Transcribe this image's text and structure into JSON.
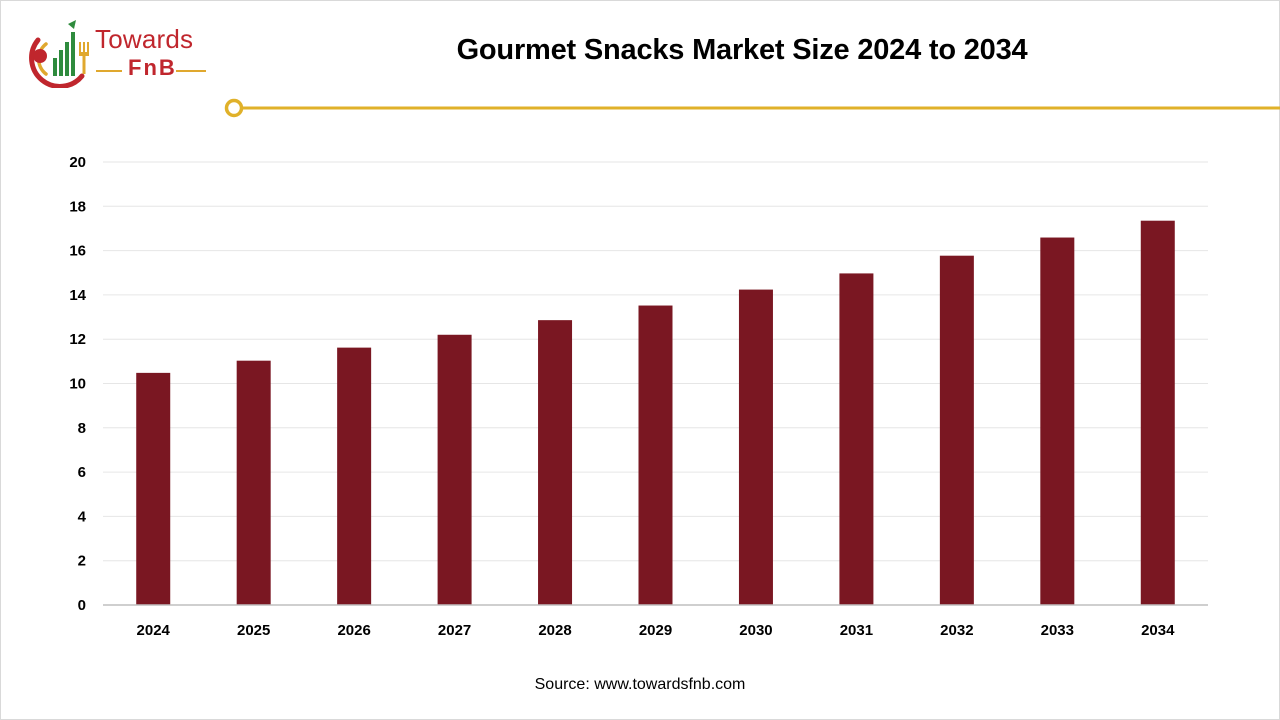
{
  "brand": {
    "name_top": "Towards",
    "name_bottom": "FnB",
    "colors": {
      "red": "#c0262d",
      "green": "#2e8b3d",
      "gold": "#e0a82e"
    }
  },
  "accent_color": "#e0b12a",
  "bar_color": "#7a1722",
  "source_text": "Source: www.towardsfnb.com",
  "chart_data": {
    "type": "bar",
    "title": "Gourmet Snacks Market Size 2024 to 2034",
    "xlabel": "",
    "ylabel": "",
    "categories": [
      "2024",
      "2025",
      "2026",
      "2027",
      "2028",
      "2029",
      "2030",
      "2031",
      "2032",
      "2033",
      "2034"
    ],
    "values": [
      10.48,
      11.03,
      11.62,
      12.2,
      12.86,
      13.52,
      14.24,
      14.97,
      15.77,
      16.59,
      17.35
    ],
    "ylim": [
      0,
      20
    ],
    "yticks": [
      0,
      2,
      4,
      6,
      8,
      10,
      12,
      14,
      16,
      18,
      20
    ],
    "grid": true,
    "legend": "none"
  }
}
